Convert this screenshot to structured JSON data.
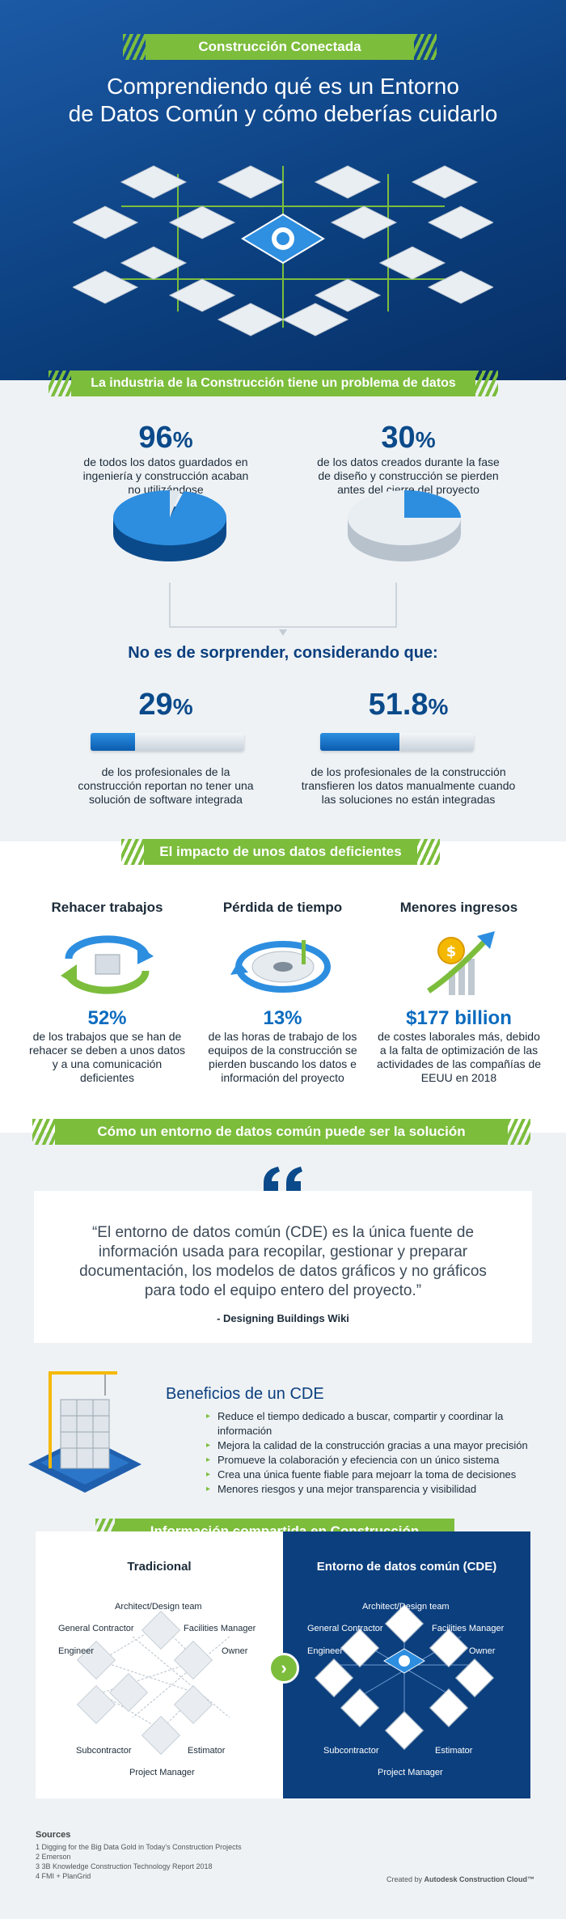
{
  "header": {
    "banner": "Construcción Conectada",
    "title_line1": "Comprendiendo qué es un Entorno",
    "title_line2": "de Datos Común y cómo deberías cuidarlo"
  },
  "problem": {
    "banner": "La industria de la Construcción tiene un problema de datos",
    "stat1_value": "96",
    "stat1_desc_l1": "de todos los datos guardados en",
    "stat1_desc_l2": "ingeniería y construcción acaban",
    "stat1_desc_l3": "no utilizándose",
    "stat1_fraction": 0.96,
    "stat2_value": "30",
    "stat2_desc_l1": "de los datos creados durante la fase",
    "stat2_desc_l2": "de diseño y construcción se pierden",
    "stat2_desc_l3": "antes del cierre del proyecto",
    "stat2_fraction": 0.3,
    "percent_sign": "%",
    "subheading": "No es de sorprender, considerando que:",
    "stat3_value": "29",
    "stat3_desc_l1": "de los profesionales de la",
    "stat3_desc_l2": "construcción reportan no tener una",
    "stat3_desc_l3": "solución de software integrada",
    "stat3_fraction": 0.29,
    "stat4_value": "51.8",
    "stat4_desc_l1": "de los profesionales de la construcción",
    "stat4_desc_l2": "transfieren los datos manualmente cuando",
    "stat4_desc_l3": "las soluciones no están integradas",
    "stat4_fraction": 0.518
  },
  "impact": {
    "banner": "El impacto de unos datos deficientes",
    "col1_title": "Rehacer trabajos",
    "col1_value": "52%",
    "col1_desc_l1": "de los trabajos que se han de",
    "col1_desc_l2": "rehacer se deben a unos datos",
    "col1_desc_l3": "y a una comunicación",
    "col1_desc_l4": "deficientes",
    "col2_title": "Pérdida de tiempo",
    "col2_value": "13%",
    "col2_desc_l1": "de las horas de trabajo de los",
    "col2_desc_l2": "equipos de la construcción se",
    "col2_desc_l3": "pierden buscando los datos e",
    "col2_desc_l4": "información del proyecto",
    "col3_title": "Menores ingresos",
    "col3_value": "$177 billion",
    "col3_desc_l1": "de costes laborales más, debido",
    "col3_desc_l2": "a la falta de optimización de las",
    "col3_desc_l3": "actividades de las compañías de",
    "col3_desc_l4": "EEUU en 2018"
  },
  "solution": {
    "banner": "Cómo un entorno de datos común puede ser la solución",
    "quote_l1": "“El entorno de datos común (CDE) es la única fuente de",
    "quote_l2": "información usada para recopilar, gestionar y preparar",
    "quote_l3": "documentación, los modelos de datos gráficos y no gráficos",
    "quote_l4": "para todo el equipo entero del proyecto.”",
    "quote_author": "- Designing Buildings Wiki",
    "benefits_title": "Beneficios de un CDE",
    "benefits": [
      "Reduce el tiempo dedicado a buscar, compartir y coordinar la información",
      "Mejora la calidad de la construcción gracias a una mayor precisión",
      "Promueve la colaboración y efeciencia con un único sistema",
      "Crea una única fuente fiable para mejoarr la toma de decisiones",
      "Menores riesgos y una mejor transparencia y visibilidad"
    ]
  },
  "shared": {
    "banner": "Información compartida en Construcción",
    "left_title": "Tradicional",
    "right_title": "Entorno de datos común (CDE)",
    "roles": {
      "architect": "Architect/Design team",
      "gc": "General Contractor",
      "fm": "Facilities Manager",
      "engineer": "Engineer",
      "owner": "Owner",
      "subcontractor": "Subcontractor",
      "estimator": "Estimator",
      "pm": "Project Manager"
    }
  },
  "sources": {
    "title": "Sources",
    "items": [
      "1 Digging for the Big Data Gold in Today's Construction Projects",
      "2 Emerson",
      "3 3B Knowledge Construction Technology Report 2018",
      "4 FMI + PlanGrid"
    ],
    "credit_prefix": "Created by ",
    "credit_brand": "Autodesk Construction Cloud™"
  },
  "colors": {
    "navy": "#0b3f7e",
    "green": "#7cbd3c",
    "blue": "#0b6bbf"
  }
}
